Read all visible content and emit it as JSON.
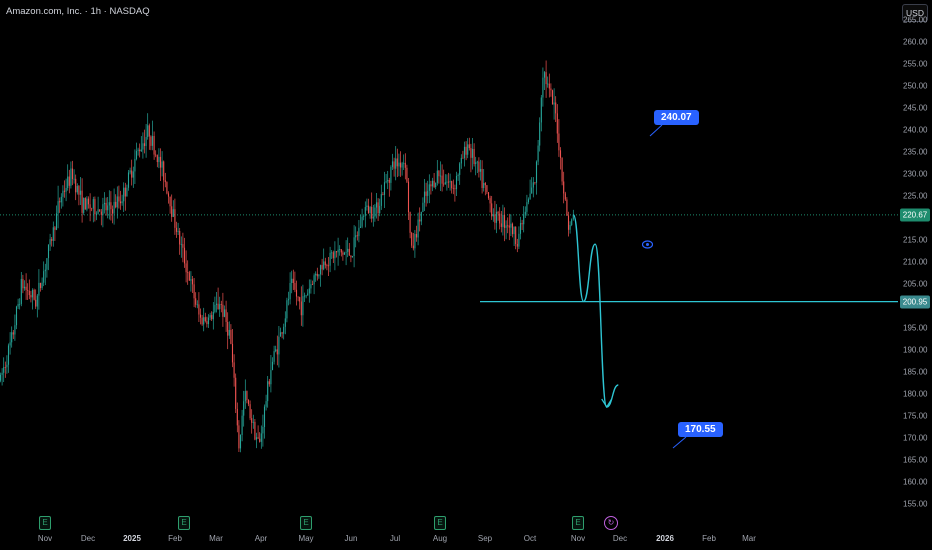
{
  "header": {
    "symbol": "Amazon.com, Inc. · 1h · NASDAQ",
    "currency": "USD"
  },
  "price_axis": [
    "265.00",
    "260.00",
    "255.00",
    "250.00",
    "245.00",
    "240.00",
    "235.00",
    "230.00",
    "225.00",
    "220.00",
    "215.00",
    "210.00",
    "205.00",
    "200.00",
    "195.00",
    "190.00",
    "185.00",
    "180.00",
    "175.00",
    "170.00",
    "165.00",
    "160.00",
    "155.00"
  ],
  "time_axis": [
    "Nov",
    "Dec",
    "2025",
    "Feb",
    "Mar",
    "Apr",
    "May",
    "Jun",
    "Jul",
    "Aug",
    "Sep",
    "Oct",
    "Nov",
    "Dec",
    "2026",
    "Feb",
    "Mar"
  ],
  "price_tags": {
    "current": "220.67",
    "level": "200.95"
  },
  "callouts": {
    "upper": "240.07",
    "lower": "170.55"
  },
  "events": {
    "earnings_label": "E"
  },
  "colors": {
    "up": "#26a69a",
    "down": "#ef5350",
    "projection": "#2ec5d3",
    "callout": "#2962ff",
    "current_tag": "#1e8c6e",
    "level_tag": "#3a8a8e"
  },
  "chart_data": {
    "type": "candlestick",
    "ylim": [
      152,
      267
    ],
    "level_line": 200.95,
    "current_price": 220.67,
    "targets": [
      240.07,
      170.55
    ],
    "price_path": [
      [
        "2024-10-24",
        183
      ],
      [
        "2024-11-01",
        192
      ],
      [
        "2024-11-08",
        205
      ],
      [
        "2024-11-18",
        201
      ],
      [
        "2024-11-27",
        213
      ],
      [
        "2024-12-05",
        225
      ],
      [
        "2024-12-13",
        230
      ],
      [
        "2024-12-20",
        223
      ],
      [
        "2024-12-30",
        222
      ],
      [
        "2025-01-09",
        222
      ],
      [
        "2025-01-17",
        225
      ],
      [
        "2025-01-27",
        235
      ],
      [
        "2025-02-04",
        240
      ],
      [
        "2025-02-07",
        236
      ],
      [
        "2025-02-14",
        230
      ],
      [
        "2025-02-24",
        216
      ],
      [
        "2025-03-04",
        206
      ],
      [
        "2025-03-11",
        197
      ],
      [
        "2025-03-18",
        197
      ],
      [
        "2025-03-25",
        201
      ],
      [
        "2025-04-01",
        193
      ],
      [
        "2025-04-07",
        168
      ],
      [
        "2025-04-11",
        180
      ],
      [
        "2025-04-21",
        168
      ],
      [
        "2025-04-29",
        186
      ],
      [
        "2025-05-08",
        196
      ],
      [
        "2025-05-13",
        205
      ],
      [
        "2025-05-20",
        200
      ],
      [
        "2025-05-28",
        206
      ],
      [
        "2025-06-05",
        210
      ],
      [
        "2025-06-13",
        212
      ],
      [
        "2025-06-24",
        212
      ],
      [
        "2025-07-03",
        222
      ],
      [
        "2025-07-11",
        222
      ],
      [
        "2025-07-22",
        232
      ],
      [
        "2025-07-31",
        233
      ],
      [
        "2025-08-04",
        212
      ],
      [
        "2025-08-13",
        224
      ],
      [
        "2025-08-22",
        230
      ],
      [
        "2025-09-02",
        227
      ],
      [
        "2025-09-12",
        237
      ],
      [
        "2025-09-22",
        228
      ],
      [
        "2025-10-01",
        220
      ],
      [
        "2025-10-10",
        219
      ],
      [
        "2025-10-16",
        215
      ],
      [
        "2025-10-24",
        224
      ],
      [
        "2025-10-29",
        229
      ],
      [
        "2025-11-03",
        254
      ],
      [
        "2025-11-07",
        249
      ],
      [
        "2025-11-12",
        243
      ],
      [
        "2025-11-17",
        227
      ],
      [
        "2025-11-21",
        217
      ],
      [
        "2025-11-24",
        220.67
      ]
    ],
    "projection": [
      [
        "2025-11-24",
        220.67
      ],
      [
        "2025-12-01",
        201
      ],
      [
        "2025-12-09",
        214
      ],
      [
        "2025-12-17",
        177
      ],
      [
        "2025-12-25",
        182
      ]
    ]
  }
}
